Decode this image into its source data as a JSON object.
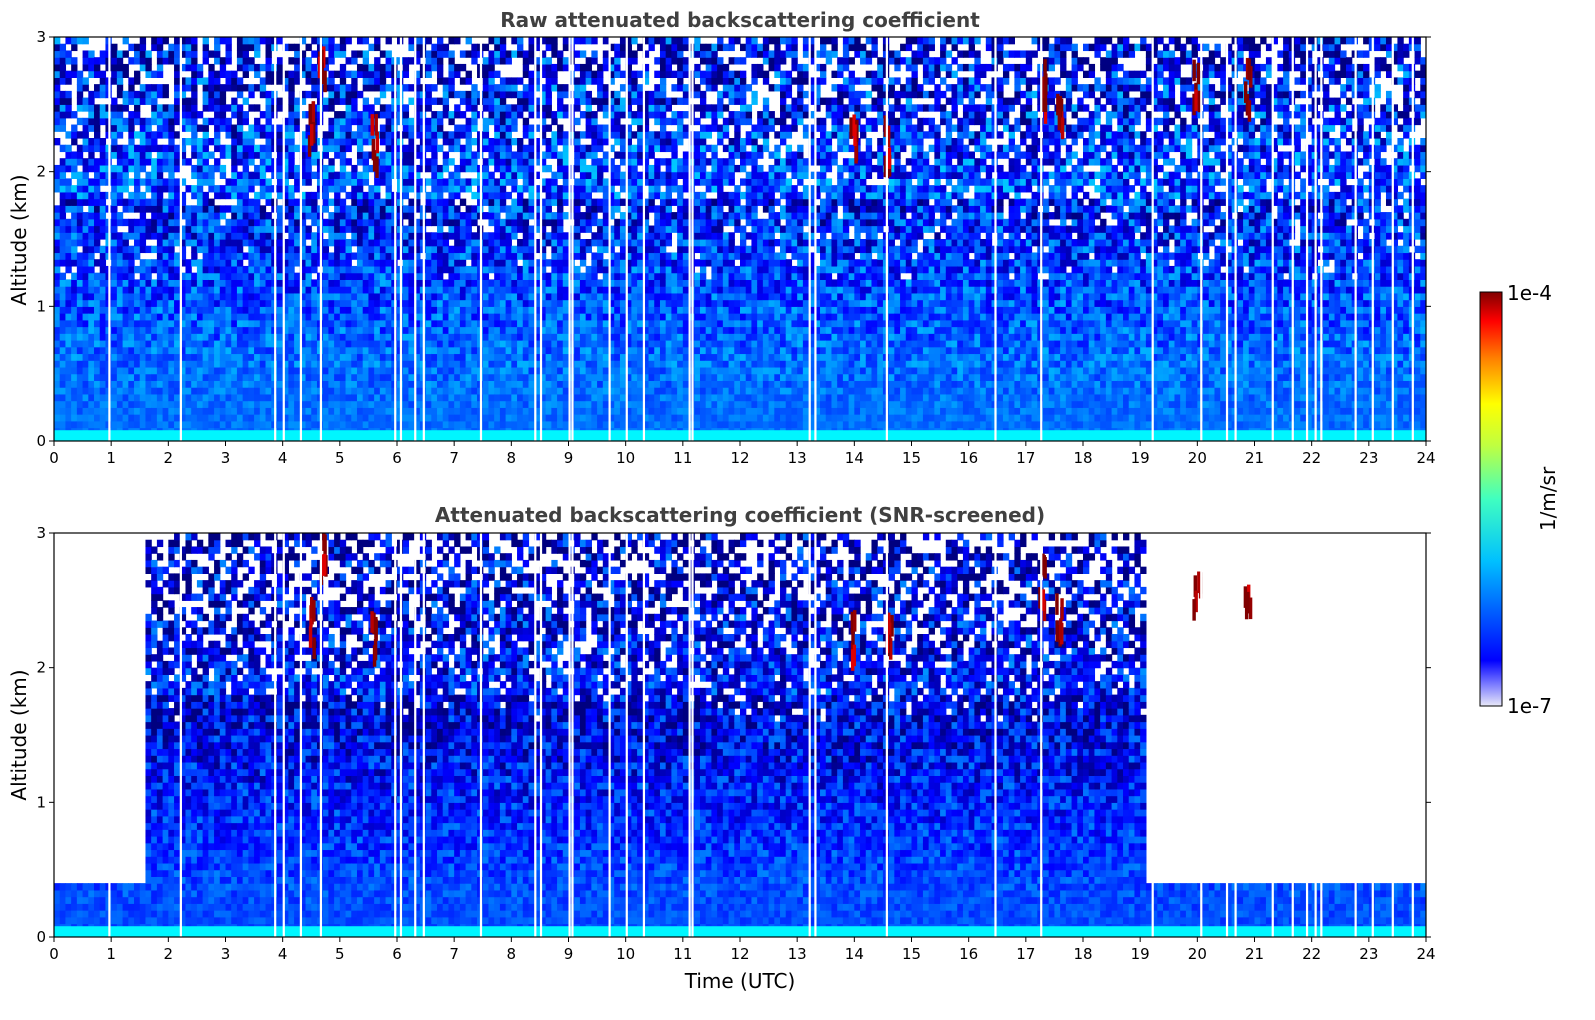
{
  "chart_data": [
    {
      "type": "heatmap",
      "title": "Raw attenuated backscattering coefficient",
      "xlabel": "",
      "ylabel": "Altitude (km)",
      "xlim": [
        0,
        24
      ],
      "ylim": [
        0,
        3
      ],
      "xticks": [
        "0",
        "1",
        "2",
        "3",
        "4",
        "5",
        "6",
        "7",
        "8",
        "9",
        "10",
        "11",
        "12",
        "13",
        "14",
        "15",
        "16",
        "17",
        "18",
        "19",
        "20",
        "21",
        "22",
        "23",
        "24"
      ],
      "yticks": [
        "0",
        "1",
        "2",
        "3"
      ],
      "gaps_utc": [
        0.95,
        2.2,
        3.85,
        4.0,
        4.3,
        4.65,
        5.95,
        6.05,
        6.3,
        6.45,
        7.45,
        8.4,
        8.5,
        9.0,
        9.05,
        9.7,
        10.0,
        10.3,
        11.1,
        11.15,
        13.2,
        13.3,
        14.55,
        16.45,
        17.25,
        19.2,
        20.05,
        20.5,
        20.65,
        21.3,
        21.65,
        21.9,
        22.05,
        22.15,
        22.75,
        23.05,
        23.4,
        23.75
      ],
      "features": [
        {
          "label": "aerosol layer",
          "x_start": 0,
          "x_end": 24,
          "y_top_km": 0.6,
          "log10_beta": -6.3
        },
        {
          "label": "clouds",
          "x_utc": [
            4.5,
            4.7,
            5.6,
            14.0,
            14.6,
            17.3,
            17.6,
            20.0,
            20.9
          ],
          "y_km": [
            2.3,
            2.8,
            2.2,
            2.2,
            2.2,
            2.6,
            2.4,
            2.6,
            2.6
          ],
          "log10_beta": -4.1
        }
      ]
    },
    {
      "type": "heatmap",
      "title": "Attenuated backscattering coefficient (SNR-screened)",
      "xlabel": "Time (UTC)",
      "ylabel": "Altitude (km)",
      "xlim": [
        0,
        24
      ],
      "ylim": [
        0,
        3
      ],
      "xticks": [
        "0",
        "1",
        "2",
        "3",
        "4",
        "5",
        "6",
        "7",
        "8",
        "9",
        "10",
        "11",
        "12",
        "13",
        "14",
        "15",
        "16",
        "17",
        "18",
        "19",
        "20",
        "21",
        "22",
        "23",
        "24"
      ],
      "yticks": [
        "0",
        "1",
        "2",
        "3"
      ],
      "screened_top_km": [
        {
          "x_start": 0,
          "x_end": 1.6,
          "top_km": 0.42
        },
        {
          "x_start": 1.6,
          "x_end": 19.15,
          "top_km": 3.0
        },
        {
          "x_start": 19.15,
          "x_end": 20.15,
          "top_km": 0.4
        },
        {
          "x_start": 20.15,
          "x_end": 24,
          "top_km": 0.38
        }
      ],
      "features": [
        {
          "label": "aerosol layer",
          "x_start": 0,
          "x_end": 24,
          "y_top_km": 0.4,
          "log10_beta": -6.4
        },
        {
          "label": "clouds",
          "x_utc": [
            4.5,
            4.7,
            5.6,
            14.0,
            14.6,
            17.3,
            17.6,
            20.0,
            20.9
          ],
          "y_km": [
            2.3,
            2.8,
            2.2,
            2.2,
            2.2,
            2.6,
            2.4,
            2.6,
            2.6
          ],
          "log10_beta": -4.1
        }
      ]
    }
  ],
  "colorbar": {
    "label": "1/m/sr",
    "min_label": "1e-7",
    "max_label": "1e-4",
    "log10_range": [
      -7,
      -4
    ],
    "colormap": "jet"
  }
}
